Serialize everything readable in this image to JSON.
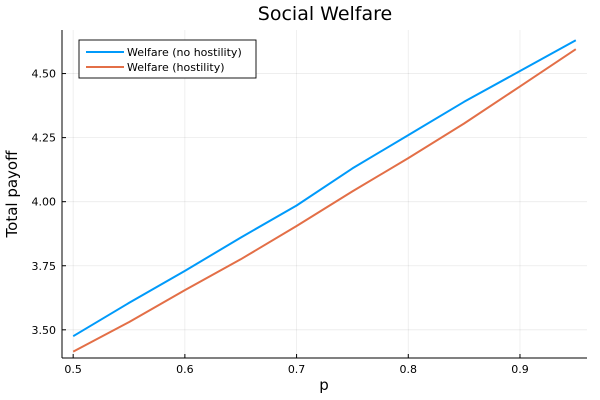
{
  "chart_data": {
    "type": "line",
    "title": "Social Welfare",
    "xlabel": "p",
    "ylabel": "Total payoff",
    "xlim": [
      0.49,
      0.96
    ],
    "ylim": [
      3.39,
      4.67
    ],
    "x_ticks": [
      "0.5",
      "0.6",
      "0.7",
      "0.8",
      "0.9"
    ],
    "y_ticks": [
      "3.50",
      "3.75",
      "4.00",
      "4.25",
      "4.50"
    ],
    "x_tick_values": [
      0.5,
      0.6,
      0.7,
      0.8,
      0.9
    ],
    "y_tick_values": [
      3.5,
      3.75,
      4.0,
      4.25,
      4.5
    ],
    "grid": true,
    "legend_position": "top-left",
    "x": [
      0.5,
      0.55,
      0.6,
      0.65,
      0.7,
      0.75,
      0.8,
      0.85,
      0.9,
      0.95
    ],
    "series": [
      {
        "name": "Welfare (no hostility)",
        "color": "#009AFA",
        "values": [
          3.475,
          3.605,
          3.73,
          3.86,
          3.985,
          4.13,
          4.26,
          4.39,
          4.51,
          4.63
        ]
      },
      {
        "name": "Welfare (hostility)",
        "color": "#E36F47",
        "values": [
          3.415,
          3.53,
          3.655,
          3.775,
          3.905,
          4.04,
          4.17,
          4.305,
          4.45,
          4.595
        ]
      }
    ]
  }
}
